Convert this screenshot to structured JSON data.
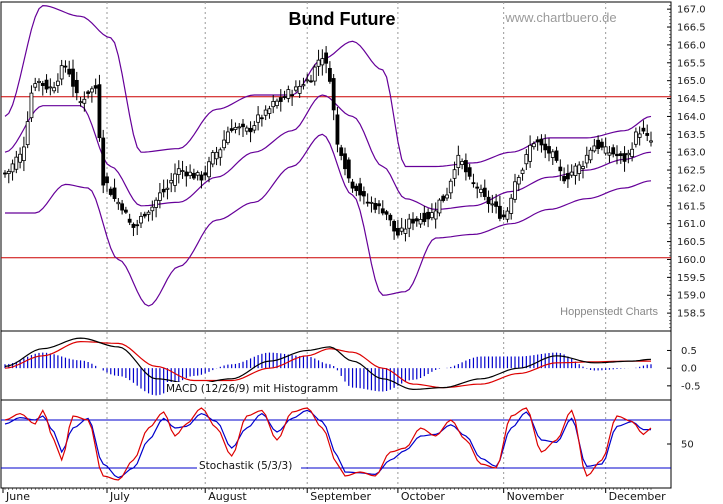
{
  "chart_data": [
    {
      "type": "candlestick",
      "title": "Bund Future",
      "watermark": "www.chartbuero.de",
      "credit": "Hoppenstedt Charts",
      "x_months": [
        "June",
        "July",
        "August",
        "September",
        "October",
        "November",
        "December"
      ],
      "y_ticks": [
        "167.0",
        "166.5",
        "166.0",
        "165.5",
        "165.0",
        "164.5",
        "164.0",
        "163.5",
        "163.0",
        "162.5",
        "162.0",
        "161.5",
        "161.0",
        "160.5",
        "160.0",
        "159.5",
        "159.0",
        "158.5"
      ],
      "ylim": [
        158.0,
        167.2
      ],
      "horizontal_lines": [
        164.55,
        160.05
      ],
      "close_anchors": [
        [
          0,
          162.4
        ],
        [
          4,
          162.9
        ],
        [
          8,
          165.0
        ],
        [
          12,
          164.8
        ],
        [
          16,
          165.4
        ],
        [
          20,
          164.4
        ],
        [
          22,
          164.7
        ],
        [
          24,
          164.8
        ],
        [
          26,
          162.2
        ],
        [
          30,
          161.6
        ],
        [
          34,
          160.9
        ],
        [
          38,
          161.4
        ],
        [
          42,
          161.9
        ],
        [
          46,
          162.5
        ],
        [
          52,
          162.3
        ],
        [
          56,
          163.0
        ],
        [
          60,
          163.7
        ],
        [
          64,
          163.6
        ],
        [
          68,
          164.0
        ],
        [
          72,
          164.4
        ],
        [
          76,
          164.7
        ],
        [
          80,
          165.0
        ],
        [
          84,
          165.7
        ],
        [
          86,
          165.1
        ],
        [
          88,
          163.2
        ],
        [
          92,
          162.1
        ],
        [
          96,
          161.6
        ],
        [
          100,
          161.4
        ],
        [
          104,
          160.7
        ],
        [
          108,
          161.1
        ],
        [
          112,
          161.2
        ],
        [
          116,
          161.7
        ],
        [
          120,
          162.8
        ],
        [
          124,
          162.1
        ],
        [
          128,
          161.6
        ],
        [
          132,
          161.2
        ],
        [
          136,
          162.4
        ],
        [
          140,
          163.3
        ],
        [
          144,
          163.0
        ],
        [
          148,
          162.3
        ],
        [
          152,
          162.6
        ],
        [
          156,
          163.2
        ],
        [
          160,
          163.0
        ],
        [
          164,
          162.8
        ],
        [
          168,
          163.6
        ],
        [
          171,
          163.3
        ]
      ],
      "bollinger_upper_anchors": [
        [
          0,
          164.0
        ],
        [
          10,
          167.1
        ],
        [
          20,
          166.8
        ],
        [
          28,
          166.2
        ],
        [
          36,
          163.0
        ],
        [
          46,
          163.1
        ],
        [
          56,
          164.2
        ],
        [
          66,
          164.6
        ],
        [
          76,
          164.6
        ],
        [
          84,
          165.6
        ],
        [
          92,
          166.1
        ],
        [
          100,
          165.3
        ],
        [
          106,
          162.6
        ],
        [
          114,
          162.6
        ],
        [
          124,
          162.7
        ],
        [
          134,
          163.0
        ],
        [
          144,
          163.4
        ],
        [
          154,
          163.4
        ],
        [
          164,
          163.6
        ],
        [
          171,
          164.0
        ]
      ],
      "bollinger_middle_anchors": [
        [
          0,
          163.0
        ],
        [
          10,
          164.3
        ],
        [
          20,
          164.3
        ],
        [
          28,
          162.6
        ],
        [
          36,
          161.5
        ],
        [
          46,
          161.6
        ],
        [
          56,
          162.3
        ],
        [
          66,
          163.0
        ],
        [
          76,
          163.6
        ],
        [
          84,
          164.6
        ],
        [
          92,
          164.0
        ],
        [
          100,
          162.6
        ],
        [
          106,
          161.7
        ],
        [
          114,
          161.4
        ],
        [
          124,
          161.5
        ],
        [
          134,
          161.9
        ],
        [
          144,
          162.3
        ],
        [
          154,
          162.5
        ],
        [
          164,
          162.8
        ],
        [
          171,
          163.0
        ]
      ],
      "bollinger_lower_anchors": [
        [
          0,
          161.3
        ],
        [
          8,
          161.3
        ],
        [
          16,
          162.1
        ],
        [
          22,
          162.0
        ],
        [
          30,
          160.0
        ],
        [
          38,
          158.7
        ],
        [
          46,
          159.8
        ],
        [
          56,
          161.1
        ],
        [
          66,
          161.6
        ],
        [
          76,
          162.6
        ],
        [
          84,
          163.5
        ],
        [
          92,
          161.8
        ],
        [
          100,
          159.0
        ],
        [
          106,
          159.1
        ],
        [
          114,
          160.6
        ],
        [
          124,
          160.7
        ],
        [
          134,
          161.0
        ],
        [
          144,
          161.4
        ],
        [
          154,
          161.7
        ],
        [
          164,
          162.0
        ],
        [
          171,
          162.2
        ]
      ],
      "n_bars": 172
    },
    {
      "type": "line",
      "label": "MACD (12/26/9) mit Histogramm",
      "y_ticks": [
        "0.5",
        "0.0",
        "-0.5"
      ],
      "ylim": [
        -0.9,
        1.05
      ],
      "macd_anchors": [
        [
          0,
          0.05
        ],
        [
          10,
          0.55
        ],
        [
          20,
          0.85
        ],
        [
          30,
          0.6
        ],
        [
          40,
          -0.3
        ],
        [
          50,
          -0.45
        ],
        [
          60,
          -0.3
        ],
        [
          70,
          0.2
        ],
        [
          80,
          0.5
        ],
        [
          86,
          0.6
        ],
        [
          92,
          0.2
        ],
        [
          100,
          -0.3
        ],
        [
          108,
          -0.6
        ],
        [
          116,
          -0.55
        ],
        [
          126,
          -0.3
        ],
        [
          136,
          0.0
        ],
        [
          146,
          0.35
        ],
        [
          156,
          0.15
        ],
        [
          166,
          0.2
        ],
        [
          171,
          0.25
        ]
      ],
      "signal_anchors": [
        [
          0,
          0.0
        ],
        [
          10,
          0.35
        ],
        [
          20,
          0.75
        ],
        [
          30,
          0.7
        ],
        [
          40,
          0.05
        ],
        [
          50,
          -0.35
        ],
        [
          60,
          -0.35
        ],
        [
          70,
          0.0
        ],
        [
          80,
          0.35
        ],
        [
          86,
          0.55
        ],
        [
          92,
          0.45
        ],
        [
          100,
          0.0
        ],
        [
          108,
          -0.45
        ],
        [
          116,
          -0.55
        ],
        [
          126,
          -0.45
        ],
        [
          136,
          -0.15
        ],
        [
          146,
          0.15
        ],
        [
          156,
          0.18
        ],
        [
          166,
          0.2
        ],
        [
          171,
          0.2
        ]
      ]
    },
    {
      "type": "line",
      "label": "Stochastik (5/3/3)",
      "y_ticks": [
        "50"
      ],
      "ylim": [
        0,
        100
      ],
      "reference_lines": [
        80,
        20
      ],
      "k_anchors": [
        [
          0,
          80
        ],
        [
          4,
          88
        ],
        [
          8,
          75
        ],
        [
          10,
          92
        ],
        [
          13,
          55
        ],
        [
          15,
          30
        ],
        [
          18,
          85
        ],
        [
          22,
          80
        ],
        [
          26,
          10
        ],
        [
          30,
          5
        ],
        [
          34,
          30
        ],
        [
          38,
          70
        ],
        [
          42,
          90
        ],
        [
          45,
          60
        ],
        [
          48,
          75
        ],
        [
          52,
          95
        ],
        [
          56,
          70
        ],
        [
          60,
          35
        ],
        [
          64,
          85
        ],
        [
          68,
          92
        ],
        [
          72,
          55
        ],
        [
          76,
          90
        ],
        [
          80,
          95
        ],
        [
          84,
          70
        ],
        [
          88,
          25
        ],
        [
          90,
          10
        ],
        [
          94,
          15
        ],
        [
          98,
          10
        ],
        [
          102,
          40
        ],
        [
          106,
          45
        ],
        [
          110,
          70
        ],
        [
          114,
          60
        ],
        [
          118,
          80
        ],
        [
          122,
          55
        ],
        [
          126,
          25
        ],
        [
          130,
          20
        ],
        [
          134,
          85
        ],
        [
          138,
          95
        ],
        [
          142,
          40
        ],
        [
          146,
          55
        ],
        [
          150,
          92
        ],
        [
          154,
          10
        ],
        [
          158,
          30
        ],
        [
          162,
          85
        ],
        [
          166,
          78
        ],
        [
          169,
          62
        ],
        [
          171,
          70
        ]
      ],
      "d_anchors": [
        [
          0,
          75
        ],
        [
          4,
          83
        ],
        [
          8,
          80
        ],
        [
          10,
          85
        ],
        [
          13,
          65
        ],
        [
          15,
          40
        ],
        [
          18,
          70
        ],
        [
          22,
          82
        ],
        [
          26,
          25
        ],
        [
          30,
          8
        ],
        [
          34,
          20
        ],
        [
          38,
          55
        ],
        [
          42,
          82
        ],
        [
          45,
          70
        ],
        [
          48,
          72
        ],
        [
          52,
          88
        ],
        [
          56,
          78
        ],
        [
          60,
          45
        ],
        [
          64,
          70
        ],
        [
          68,
          88
        ],
        [
          72,
          65
        ],
        [
          76,
          82
        ],
        [
          80,
          92
        ],
        [
          84,
          78
        ],
        [
          88,
          35
        ],
        [
          90,
          15
        ],
        [
          94,
          14
        ],
        [
          98,
          12
        ],
        [
          102,
          30
        ],
        [
          106,
          42
        ],
        [
          110,
          60
        ],
        [
          114,
          62
        ],
        [
          118,
          74
        ],
        [
          122,
          60
        ],
        [
          126,
          32
        ],
        [
          130,
          22
        ],
        [
          134,
          70
        ],
        [
          138,
          90
        ],
        [
          142,
          55
        ],
        [
          146,
          52
        ],
        [
          150,
          82
        ],
        [
          154,
          22
        ],
        [
          158,
          25
        ],
        [
          162,
          72
        ],
        [
          166,
          78
        ],
        [
          169,
          68
        ],
        [
          171,
          68
        ]
      ]
    }
  ],
  "colors": {
    "bollinger": "#660099",
    "reference": "#cc0000",
    "macd": "#000000",
    "signal": "#dd0000",
    "histogram": "#0000cc",
    "stoch_k": "#dd0000",
    "stoch_d": "#0000cc",
    "stoch_ref": "#0000cc",
    "grid": "#999999",
    "watermark": "#9a9a9a"
  }
}
